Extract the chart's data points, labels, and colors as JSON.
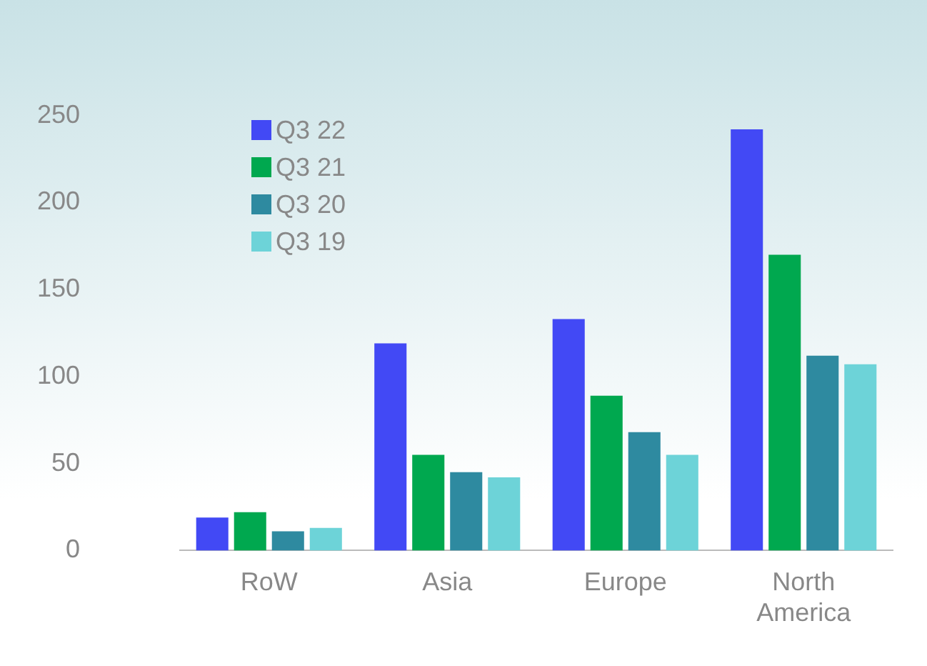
{
  "chart_data": {
    "type": "bar",
    "categories": [
      "RoW",
      "Asia",
      "Europe",
      "North America"
    ],
    "series": [
      {
        "name": "Q3 22",
        "color": "#4249f5",
        "values": [
          19,
          119,
          133,
          242
        ]
      },
      {
        "name": "Q3 21",
        "color": "#00a84f",
        "values": [
          22,
          55,
          89,
          170
        ]
      },
      {
        "name": "Q3 20",
        "color": "#2e8aa0",
        "values": [
          11,
          45,
          68,
          112
        ]
      },
      {
        "name": "Q3 19",
        "color": "#6dd3d8",
        "values": [
          13,
          42,
          55,
          107
        ]
      }
    ],
    "ylim": [
      0,
      250
    ],
    "yticks": [
      0,
      50,
      100,
      150,
      200,
      250
    ],
    "grid": false,
    "legend": "top left"
  }
}
